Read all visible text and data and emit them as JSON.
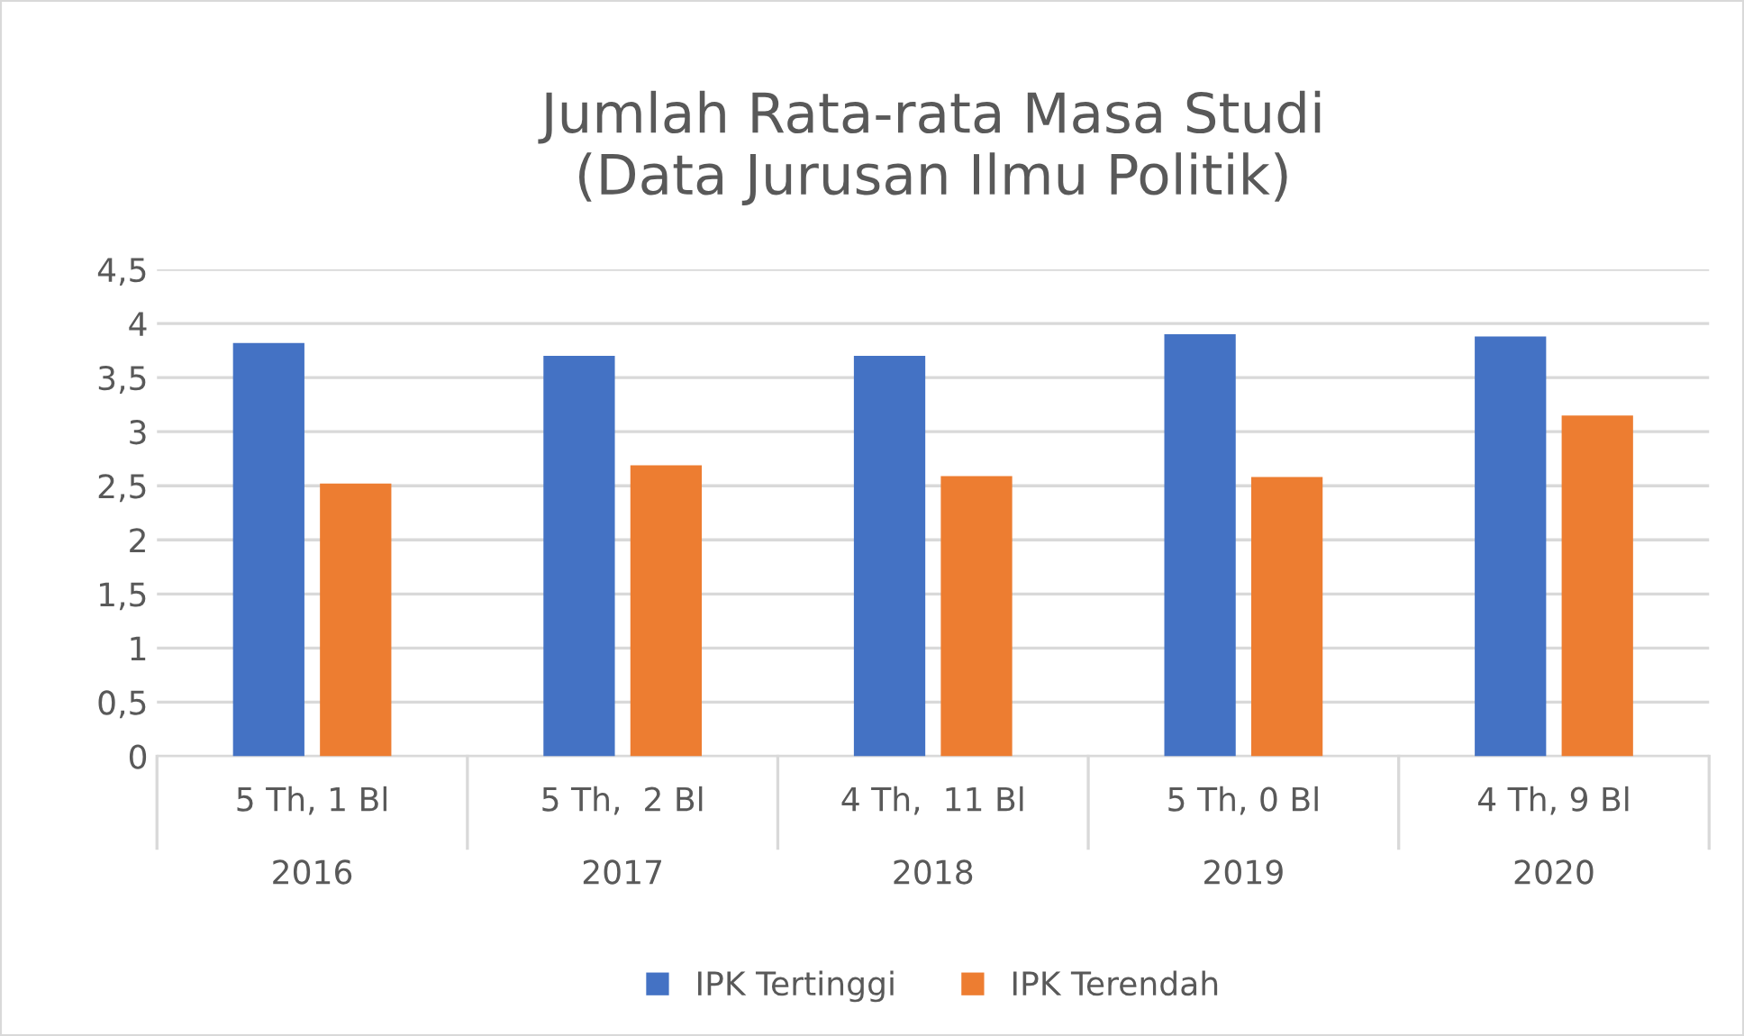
{
  "chart_data": {
    "type": "bar",
    "title": "Jumlah Rata-rata Masa Studi\n(Data Jurusan Ilmu Politik)",
    "categories": [
      "5 Th, 1 Bl\n2016",
      "5 Th,  2 Bl\n2017",
      "4 Th,  11 Bl\n2018",
      "5 Th, 0 Bl\n2019",
      "4 Th, 9 Bl\n2020"
    ],
    "series": [
      {
        "name": "IPK Tertinggi",
        "color": "#4472c4",
        "values": [
          3.82,
          3.7,
          3.7,
          3.9,
          3.88
        ]
      },
      {
        "name": "IPK Terendah",
        "color": "#ed7d31",
        "values": [
          2.52,
          2.69,
          2.59,
          2.58,
          3.15
        ]
      }
    ],
    "ylim": [
      0,
      4.5
    ],
    "yticks": [
      0,
      {
        "value": 0.5,
        "label": "0,5"
      },
      1,
      {
        "value": 1.5,
        "label": "1,5"
      },
      2,
      {
        "value": 2.5,
        "label": "2,5"
      },
      3,
      {
        "value": 3.5,
        "label": "3,5"
      },
      4,
      {
        "value": 4.5,
        "label": "4,5"
      }
    ],
    "grid": "y",
    "legend": "bottom"
  }
}
